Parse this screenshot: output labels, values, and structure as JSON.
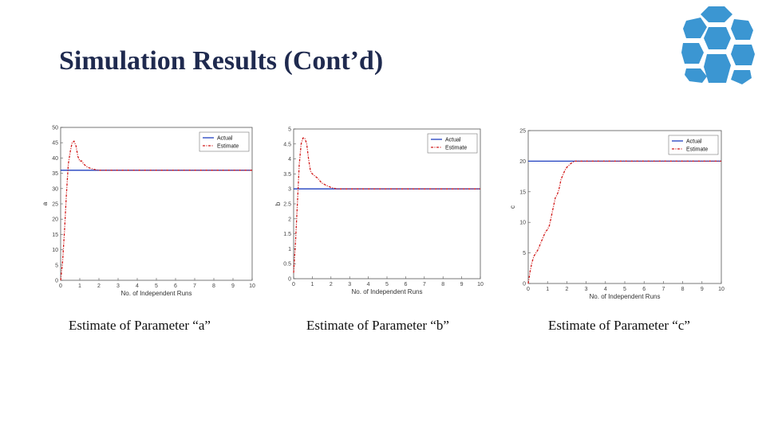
{
  "slide": {
    "title": "Simulation Results (Cont’d)",
    "captions": [
      "Estimate of Parameter “a”",
      "Estimate of Parameter “b”",
      "Estimate of Parameter “c”"
    ]
  },
  "colors": {
    "title": "#1f2a4f",
    "actual": "#1f3fbf",
    "estimate": "#d11a1a",
    "logo": "#3b96d2"
  },
  "logo": {
    "icon": "cube-logo-icon"
  },
  "chart_data": [
    {
      "type": "line",
      "xlabel": "No. of Independent Runs",
      "ylabel": "a",
      "xlim": [
        0,
        10
      ],
      "ylim": [
        0,
        50
      ],
      "xticks": [
        0,
        1,
        2,
        3,
        4,
        5,
        6,
        7,
        8,
        9,
        10
      ],
      "yticks": [
        0,
        5,
        10,
        15,
        20,
        25,
        30,
        35,
        40,
        45,
        50
      ],
      "legend": "top-right",
      "series": [
        {
          "name": "Actual",
          "style": "solid",
          "x": [
            0,
            10
          ],
          "y": [
            36,
            36
          ]
        },
        {
          "name": "Estimate",
          "style": "dashdot",
          "x": [
            0,
            0.1,
            0.2,
            0.3,
            0.4,
            0.5,
            0.6,
            0.7,
            0.8,
            0.9,
            1.0,
            1.1,
            1.2,
            1.4,
            1.6,
            1.8,
            2.0,
            3,
            4,
            5,
            6,
            7,
            8,
            9,
            10
          ],
          "y": [
            0,
            6,
            16,
            28,
            38,
            42,
            45,
            45.5,
            44,
            40.5,
            39,
            39,
            38,
            37,
            36.5,
            36.2,
            36,
            36,
            36,
            36,
            36,
            36,
            36,
            36,
            36
          ]
        }
      ]
    },
    {
      "type": "line",
      "xlabel": "No. of Independent Runs",
      "ylabel": "b",
      "xlim": [
        0,
        10
      ],
      "ylim": [
        0,
        5
      ],
      "xticks": [
        0,
        1,
        2,
        3,
        4,
        5,
        6,
        7,
        8,
        9,
        10
      ],
      "yticks": [
        0,
        0.5,
        1,
        1.5,
        2,
        2.5,
        3,
        3.5,
        4,
        4.5,
        5
      ],
      "legend": "top-right",
      "series": [
        {
          "name": "Actual",
          "style": "solid",
          "x": [
            0,
            10
          ],
          "y": [
            3,
            3
          ]
        },
        {
          "name": "Estimate",
          "style": "dashdot",
          "x": [
            0,
            0.1,
            0.2,
            0.3,
            0.4,
            0.5,
            0.6,
            0.7,
            0.8,
            0.9,
            1.0,
            1.1,
            1.3,
            1.5,
            1.8,
            2.0,
            2.3,
            3,
            4,
            5,
            6,
            7,
            8,
            9,
            10
          ],
          "y": [
            0.2,
            1.2,
            2.5,
            3.8,
            4.5,
            4.7,
            4.7,
            4.5,
            4.0,
            3.6,
            3.5,
            3.45,
            3.35,
            3.2,
            3.1,
            3.05,
            3.0,
            3,
            3,
            3,
            3,
            3,
            3,
            3,
            3
          ]
        }
      ]
    },
    {
      "type": "line",
      "xlabel": "No. of Independent Runs",
      "ylabel": "c",
      "xlim": [
        0,
        10
      ],
      "ylim": [
        0,
        25
      ],
      "xticks": [
        0,
        1,
        2,
        3,
        4,
        5,
        6,
        7,
        8,
        9,
        10
      ],
      "yticks": [
        0,
        5,
        10,
        15,
        20,
        25
      ],
      "legend": "top-right",
      "series": [
        {
          "name": "Actual",
          "style": "solid",
          "x": [
            0,
            10
          ],
          "y": [
            20,
            20
          ]
        },
        {
          "name": "Estimate",
          "style": "dashdot",
          "x": [
            0,
            0.1,
            0.2,
            0.3,
            0.5,
            0.7,
            0.9,
            1.0,
            1.1,
            1.3,
            1.4,
            1.5,
            1.6,
            1.7,
            1.8,
            1.9,
            2.0,
            2.2,
            2.4,
            3,
            4,
            5,
            6,
            7,
            8,
            9,
            10
          ],
          "y": [
            0,
            2,
            3.5,
            4.5,
            5.5,
            7,
            8.5,
            8.8,
            9.5,
            12.5,
            14,
            14.5,
            15.5,
            17,
            17.8,
            18.5,
            19,
            19.6,
            20,
            20,
            20,
            20,
            20,
            20,
            20,
            20,
            20
          ]
        }
      ]
    }
  ]
}
